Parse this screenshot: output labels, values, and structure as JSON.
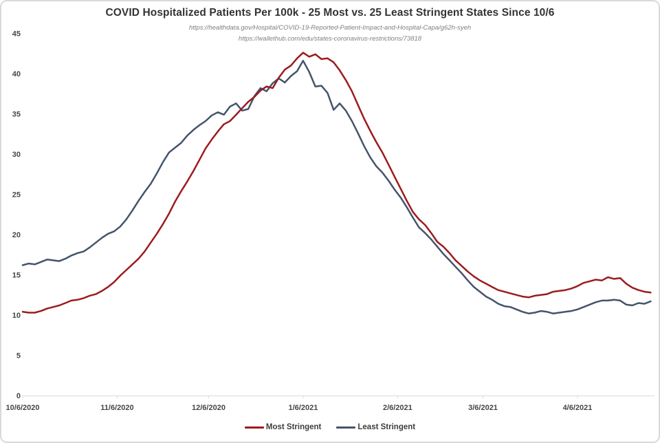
{
  "header": {
    "title": "COVID Hospitalized Patients Per 100k - 25 Most vs. 25 Least Stringent States Since 10/6",
    "source_url_1": "https://healthdata.gov/Hospital/COVID-19-Reported-Patient-Impact-and-Hospital-Capa/g62h-syeh",
    "source_url_2": "https://wallethub.com/edu/states-coronavirus-restrictions/73818"
  },
  "legend": {
    "items": [
      {
        "label": "Most Stringent",
        "color": "#9c1b1e"
      },
      {
        "label": "Least Stringent",
        "color": "#44546a"
      }
    ]
  },
  "colors": {
    "most_stringent_line": "#9c1b1e",
    "least_stringent_line": "#44546a",
    "axis_line": "#d9d9d9",
    "axis_text": "#454545",
    "title_text": "#333333",
    "source_text": "#7f7f7f",
    "border": "#d7dadb",
    "background": "#ffffff"
  },
  "chart_data": {
    "type": "line",
    "title": "COVID Hospitalized Patients Per 100k - 25 Most vs. 25 Least Stringent States Since 10/6",
    "xlabel": "",
    "ylabel": "",
    "ylim": [
      0,
      45
    ],
    "grid": false,
    "legend_position": "bottom",
    "x_start_date": "10/6/2020",
    "x_interval_days": 2,
    "x_end_date": "4/30/2021",
    "y_ticks": [
      0,
      5,
      10,
      15,
      20,
      25,
      30,
      35,
      40,
      45
    ],
    "x_ticks": [
      {
        "label": "10/6/2020",
        "day": 0
      },
      {
        "label": "11/6/2020",
        "day": 31
      },
      {
        "label": "12/6/2020",
        "day": 61
      },
      {
        "label": "1/6/2021",
        "day": 92
      },
      {
        "label": "2/6/2021",
        "day": 123
      },
      {
        "label": "3/6/2021",
        "day": 151
      },
      {
        "label": "4/6/2021",
        "day": 182
      }
    ],
    "series": [
      {
        "name": "Most Stringent",
        "color": "#9c1b1e",
        "values": [
          10.4,
          10.3,
          10.3,
          10.5,
          10.8,
          11.0,
          11.2,
          11.5,
          11.8,
          11.9,
          12.1,
          12.4,
          12.6,
          13.0,
          13.5,
          14.1,
          14.9,
          15.6,
          16.3,
          17.0,
          17.9,
          19.0,
          20.1,
          21.3,
          22.6,
          24.1,
          25.4,
          26.6,
          27.9,
          29.3,
          30.7,
          31.8,
          32.8,
          33.7,
          34.1,
          34.9,
          35.7,
          36.5,
          37.1,
          37.9,
          38.4,
          38.2,
          39.5,
          40.5,
          41.0,
          41.9,
          42.6,
          42.1,
          42.4,
          41.8,
          41.9,
          41.4,
          40.4,
          39.2,
          37.8,
          36.1,
          34.4,
          32.9,
          31.5,
          30.2,
          28.7,
          27.2,
          25.7,
          24.2,
          22.8,
          21.9,
          21.2,
          20.2,
          19.1,
          18.5,
          17.7,
          16.8,
          16.1,
          15.4,
          14.8,
          14.3,
          13.9,
          13.5,
          13.1,
          12.9,
          12.7,
          12.5,
          12.3,
          12.2,
          12.4,
          12.5,
          12.6,
          12.9,
          13.0,
          13.1,
          13.3,
          13.6,
          14.0,
          14.2,
          14.4,
          14.3,
          14.7,
          14.5,
          14.6,
          13.9,
          13.4,
          13.1,
          12.9,
          12.8
        ]
      },
      {
        "name": "Least Stringent",
        "color": "#44546a",
        "values": [
          16.2,
          16.4,
          16.3,
          16.6,
          16.9,
          16.8,
          16.7,
          17.0,
          17.4,
          17.7,
          17.9,
          18.4,
          19.0,
          19.6,
          20.1,
          20.4,
          21.0,
          21.9,
          23.0,
          24.2,
          25.3,
          26.3,
          27.6,
          29.0,
          30.2,
          30.8,
          31.4,
          32.3,
          33.0,
          33.6,
          34.1,
          34.8,
          35.2,
          34.9,
          35.9,
          36.3,
          35.4,
          35.6,
          37.2,
          38.2,
          37.8,
          38.8,
          39.4,
          38.9,
          39.7,
          40.3,
          41.6,
          40.2,
          38.4,
          38.5,
          37.6,
          35.5,
          36.3,
          35.4,
          34.1,
          32.6,
          31.0,
          29.6,
          28.5,
          27.7,
          26.7,
          25.6,
          24.6,
          23.4,
          22.1,
          20.9,
          20.2,
          19.4,
          18.5,
          17.6,
          16.8,
          16.0,
          15.2,
          14.3,
          13.5,
          12.9,
          12.3,
          11.9,
          11.4,
          11.1,
          11.0,
          10.7,
          10.4,
          10.2,
          10.3,
          10.5,
          10.4,
          10.2,
          10.3,
          10.4,
          10.5,
          10.7,
          11.0,
          11.3,
          11.6,
          11.8,
          11.8,
          11.9,
          11.8,
          11.3,
          11.2,
          11.5,
          11.4,
          11.7
        ]
      }
    ]
  }
}
